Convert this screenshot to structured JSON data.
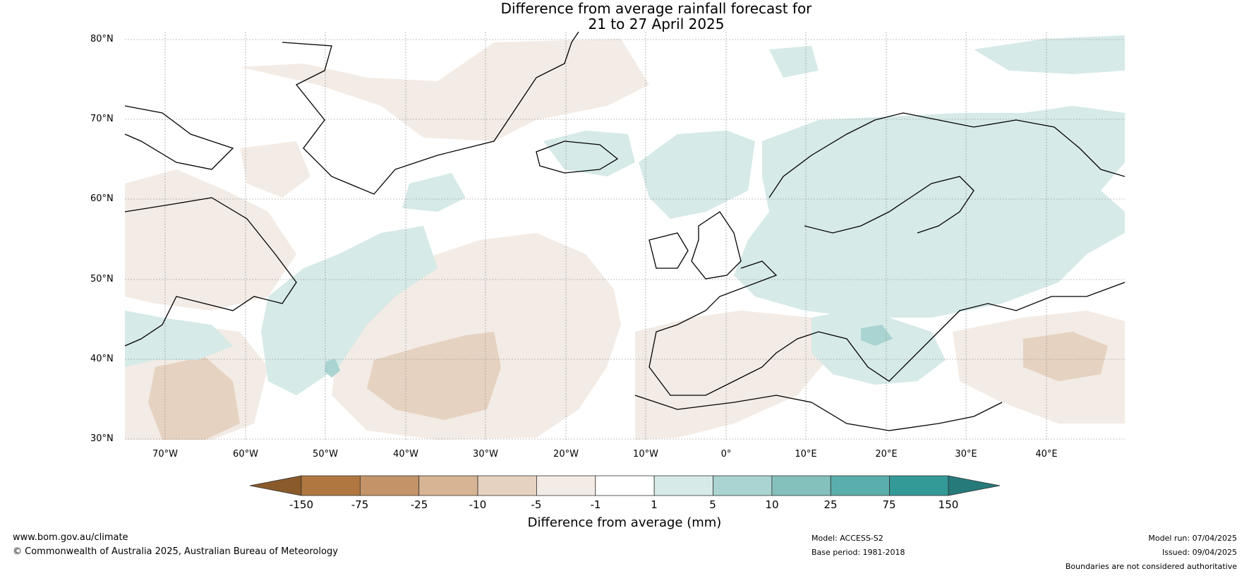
{
  "title_line1": "Difference from average rainfall forecast for",
  "title_line2": "21 to 27 April 2025",
  "lat_labels": [
    "80°N",
    "70°N",
    "60°N",
    "50°N",
    "40°N",
    "30°N"
  ],
  "lon_labels": [
    "70°W",
    "60°W",
    "50°W",
    "40°W",
    "30°W",
    "20°W",
    "10°W",
    "0°",
    "10°E",
    "20°E",
    "30°E",
    "40°E"
  ],
  "colorbar": {
    "ticks": [
      "-150",
      "-75",
      "-25",
      "-10",
      "-5",
      "-1",
      "1",
      "5",
      "10",
      "25",
      "75",
      "150"
    ],
    "title": "Difference from average (mm)",
    "colors": [
      "#8a5a2a",
      "#b07840",
      "#c49468",
      "#d6b494",
      "#e6d2c0",
      "#f3ebe5",
      "#ffffff",
      "#d6eae8",
      "#a9d4d1",
      "#84c1bd",
      "#5aaeab",
      "#339a98",
      "#267a79"
    ]
  },
  "footer": {
    "website": "www.bom.gov.au/climate",
    "copyright": "© Commonwealth of Australia 2025, Australian Bureau of Meteorology",
    "model": "Model: ACCESS-S2",
    "base_period": "Base period: 1981-2018",
    "model_run": "Model run: 07/04/2025",
    "issued": "Issued: 09/04/2025",
    "disclaimer": "Boundaries are not considered authoritative"
  }
}
